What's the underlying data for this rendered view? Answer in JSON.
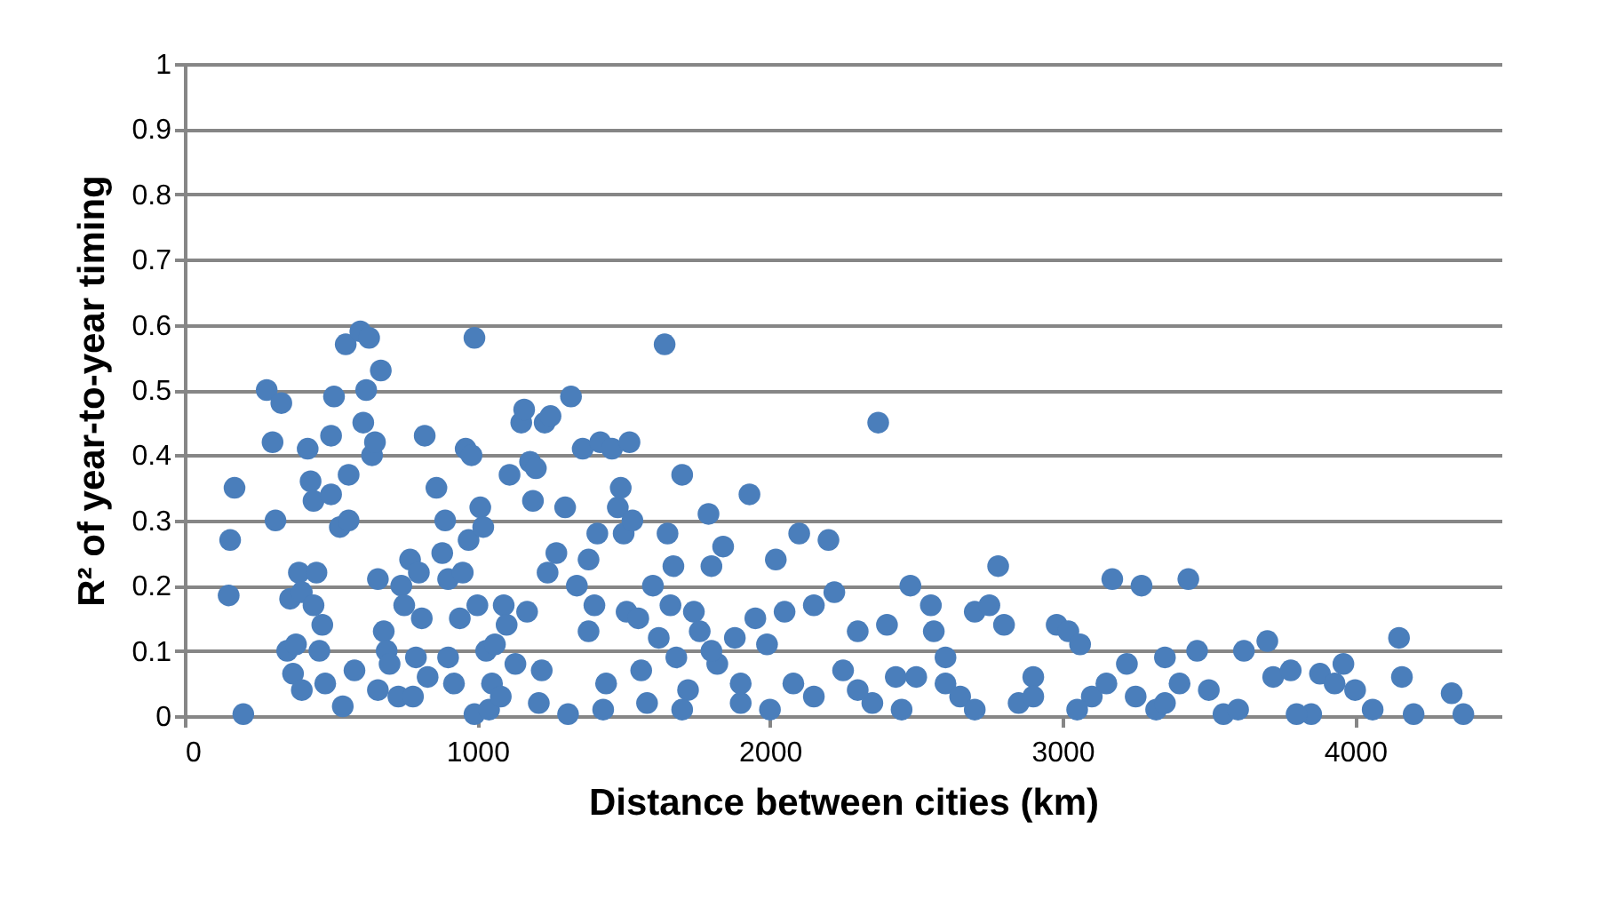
{
  "chart_data": {
    "type": "scatter",
    "xlabel": "Distance between cities (km)",
    "ylabel": "R² of year-to-year timing",
    "xlim": [
      0,
      4500
    ],
    "xticks": [
      0,
      1000,
      2000,
      3000,
      4000
    ],
    "ylim": [
      0,
      1
    ],
    "yticks": [
      0,
      0.1,
      0.2,
      0.3,
      0.4,
      0.5,
      0.6,
      0.7,
      0.8,
      0.9,
      1
    ],
    "grid": "y",
    "marker": "circle",
    "legend": false,
    "series": [
      {
        "color": "#4a7ebb",
        "x": [
          150,
          155,
          170,
          200,
          280,
          300,
          310,
          330,
          350,
          360,
          370,
          380,
          390,
          400,
          400,
          420,
          430,
          440,
          440,
          450,
          460,
          470,
          480,
          500,
          500,
          510,
          530,
          540,
          550,
          560,
          560,
          580,
          600,
          610,
          620,
          630,
          640,
          650,
          660,
          660,
          670,
          680,
          690,
          700,
          730,
          740,
          750,
          770,
          780,
          790,
          800,
          810,
          820,
          830,
          860,
          880,
          890,
          900,
          900,
          920,
          940,
          950,
          960,
          970,
          980,
          990,
          990,
          1000,
          1010,
          1020,
          1030,
          1040,
          1050,
          1060,
          1080,
          1090,
          1100,
          1110,
          1130,
          1150,
          1160,
          1170,
          1180,
          1190,
          1200,
          1210,
          1220,
          1230,
          1240,
          1250,
          1270,
          1300,
          1310,
          1320,
          1340,
          1360,
          1380,
          1380,
          1400,
          1410,
          1420,
          1430,
          1440,
          1460,
          1480,
          1490,
          1500,
          1510,
          1520,
          1530,
          1550,
          1560,
          1580,
          1600,
          1620,
          1640,
          1650,
          1660,
          1670,
          1680,
          1700,
          1720,
          1740,
          1760,
          1790,
          1800,
          1820,
          1840,
          1880,
          1900,
          1930,
          1950,
          1990,
          2020,
          2050,
          2080,
          2100,
          2150,
          2200,
          2220,
          2250,
          2300,
          2350,
          2370,
          2400,
          2430,
          2480,
          2550,
          2560,
          2600,
          2650,
          2700,
          2750,
          2780,
          2800,
          2850,
          2900,
          2980,
          3020,
          3060,
          3100,
          3150,
          3170,
          3220,
          3270,
          3320,
          3350,
          3400,
          3430,
          3460,
          3500,
          3550,
          3620,
          3700,
          3720,
          3780,
          3850,
          3880,
          3930,
          3960,
          4000,
          4060,
          4150,
          4160,
          4200,
          4330,
          4370,
          1700,
          1900,
          2000,
          2150,
          2300,
          2450,
          2500,
          2700,
          2900,
          3050,
          3250,
          3600,
          3800,
          1800,
          2600,
          3350
        ],
        "values": [
          0.185,
          0.27,
          0.35,
          0.003,
          0.5,
          0.42,
          0.3,
          0.48,
          0.1,
          0.18,
          0.065,
          0.11,
          0.22,
          0.04,
          0.19,
          0.41,
          0.36,
          0.33,
          0.17,
          0.22,
          0.1,
          0.14,
          0.05,
          0.34,
          0.43,
          0.49,
          0.29,
          0.015,
          0.57,
          0.37,
          0.3,
          0.07,
          0.59,
          0.45,
          0.5,
          0.58,
          0.4,
          0.42,
          0.04,
          0.21,
          0.53,
          0.13,
          0.1,
          0.08,
          0.03,
          0.2,
          0.17,
          0.24,
          0.03,
          0.09,
          0.22,
          0.15,
          0.43,
          0.06,
          0.35,
          0.25,
          0.3,
          0.21,
          0.09,
          0.05,
          0.15,
          0.22,
          0.41,
          0.27,
          0.4,
          0.58,
          0.003,
          0.17,
          0.32,
          0.29,
          0.1,
          0.01,
          0.05,
          0.11,
          0.03,
          0.17,
          0.14,
          0.37,
          0.08,
          0.45,
          0.47,
          0.16,
          0.39,
          0.33,
          0.38,
          0.02,
          0.07,
          0.45,
          0.22,
          0.46,
          0.25,
          0.32,
          0.003,
          0.49,
          0.2,
          0.41,
          0.13,
          0.24,
          0.17,
          0.28,
          0.42,
          0.01,
          0.05,
          0.41,
          0.32,
          0.35,
          0.28,
          0.16,
          0.42,
          0.3,
          0.15,
          0.07,
          0.02,
          0.2,
          0.12,
          0.57,
          0.28,
          0.17,
          0.23,
          0.09,
          0.37,
          0.04,
          0.16,
          0.13,
          0.31,
          0.23,
          0.08,
          0.26,
          0.12,
          0.02,
          0.34,
          0.15,
          0.11,
          0.24,
          0.16,
          0.05,
          0.28,
          0.17,
          0.27,
          0.19,
          0.07,
          0.13,
          0.02,
          0.45,
          0.14,
          0.06,
          0.2,
          0.17,
          0.13,
          0.05,
          0.03,
          0.16,
          0.17,
          0.23,
          0.14,
          0.02,
          0.06,
          0.14,
          0.13,
          0.11,
          0.03,
          0.05,
          0.21,
          0.08,
          0.2,
          0.01,
          0.09,
          0.05,
          0.21,
          0.1,
          0.04,
          0.003,
          0.1,
          0.115,
          0.06,
          0.07,
          0.003,
          0.065,
          0.05,
          0.08,
          0.04,
          0.01,
          0.12,
          0.06,
          0.003,
          0.035,
          0.003,
          0.01,
          0.05,
          0.01,
          0.03,
          0.04,
          0.01,
          0.06,
          0.01,
          0.03,
          0.01,
          0.03,
          0.01,
          0.003,
          0.1,
          0.09,
          0.02
        ]
      }
    ]
  }
}
